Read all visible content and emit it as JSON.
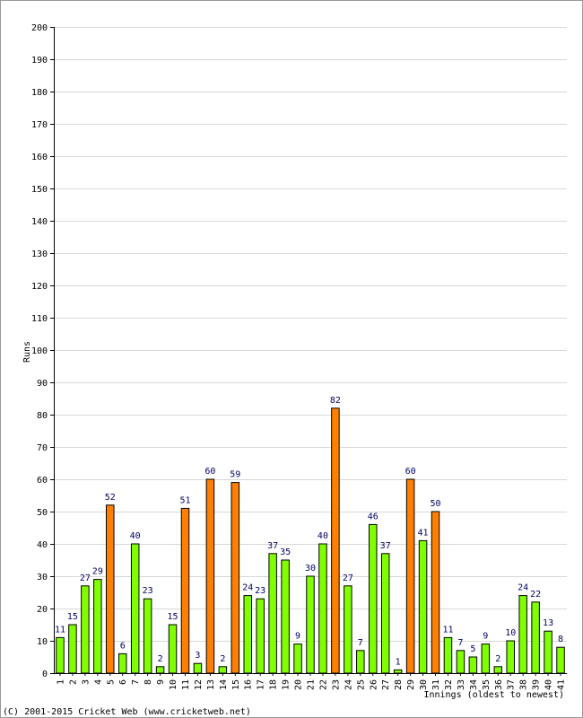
{
  "chart_data": {
    "type": "bar",
    "xlabel": "Innings (oldest to newest)",
    "ylabel": "Runs",
    "ylim": [
      0,
      200
    ],
    "yticks": [
      0,
      10,
      20,
      30,
      40,
      50,
      60,
      70,
      80,
      90,
      100,
      110,
      120,
      130,
      140,
      150,
      160,
      170,
      180,
      190,
      200
    ],
    "grid": true,
    "categories": [
      "1",
      "2",
      "3",
      "4",
      "5",
      "6",
      "7",
      "8",
      "9",
      "10",
      "11",
      "12",
      "13",
      "14",
      "15",
      "16",
      "17",
      "18",
      "19",
      "20",
      "21",
      "22",
      "23",
      "24",
      "25",
      "26",
      "27",
      "28",
      "29",
      "30",
      "31",
      "32",
      "33",
      "34",
      "35",
      "36",
      "37",
      "38",
      "39",
      "40",
      "41"
    ],
    "values": [
      11,
      15,
      27,
      29,
      52,
      6,
      40,
      23,
      2,
      15,
      51,
      3,
      60,
      2,
      59,
      24,
      23,
      37,
      35,
      9,
      30,
      40,
      82,
      27,
      7,
      46,
      37,
      1,
      60,
      41,
      50,
      11,
      7,
      5,
      9,
      2,
      10,
      24,
      22,
      13,
      8
    ],
    "colors": {
      "under_50": "#80ff00",
      "fifty_plus": "#ff8000",
      "bar_outline": "#000000",
      "grid": "#d8d8d8",
      "data_label": "#000066"
    }
  },
  "footer": {
    "copyright": "(C) 2001-2015 Cricket Web (www.cricketweb.net)"
  }
}
